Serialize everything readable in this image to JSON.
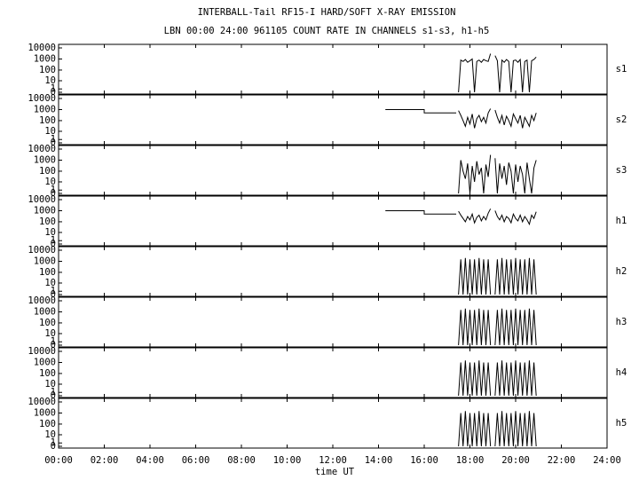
{
  "chart_data": [
    {
      "type": "line",
      "title": "INTERBALL-Tail RF15-I HARD/SOFT X-RAY EMISSION",
      "subtitle": "LBN 00:00 24:00 961105  COUNT RATE IN CHANNELS s1-s3, h1-h5",
      "yscale": "log1p",
      "xlim": [
        0,
        24
      ],
      "ylim": [
        0,
        10000
      ],
      "yticks": [
        10000,
        1000,
        100,
        10,
        1,
        0
      ],
      "x": [
        17.5,
        17.6,
        17.7,
        17.8,
        17.9,
        18.0,
        18.1,
        18.2,
        18.3,
        18.4,
        18.5,
        18.6,
        18.7,
        18.8,
        18.9,
        19.0,
        19.1,
        19.2,
        19.3,
        19.4,
        19.5,
        19.6,
        19.7,
        19.8,
        19.9,
        20.0,
        20.1,
        20.2,
        20.3,
        20.4,
        20.5,
        20.6,
        20.7,
        20.8,
        20.9
      ],
      "series": [
        {
          "name": "s1",
          "color": "#000000",
          "values": [
            0,
            800,
            600,
            900,
            500,
            700,
            1000,
            0,
            600,
            800,
            500,
            900,
            700,
            600,
            3000,
            null,
            2000,
            700,
            0,
            800,
            500,
            900,
            600,
            0,
            700,
            800,
            500,
            900,
            0,
            600,
            800,
            0,
            700,
            900,
            1500
          ]
        }
      ]
    },
    {
      "type": "line",
      "yscale": "log1p",
      "xlim": [
        0,
        24
      ],
      "ylim": [
        0,
        10000
      ],
      "yticks": [
        10000,
        1000,
        100,
        10,
        1,
        0
      ],
      "x": [
        14.3,
        16.0,
        16.0,
        17.4,
        17.45,
        17.5,
        17.6,
        17.7,
        17.8,
        17.9,
        18.0,
        18.1,
        18.2,
        18.3,
        18.4,
        18.5,
        18.6,
        18.7,
        18.8,
        18.9,
        19.0,
        19.1,
        19.2,
        19.3,
        19.4,
        19.5,
        19.6,
        19.7,
        19.8,
        19.9,
        20.0,
        20.1,
        20.2,
        20.3,
        20.4,
        20.5,
        20.6,
        20.7,
        20.8,
        20.9
      ],
      "series": [
        {
          "name": "s2",
          "color": "#000000",
          "values": [
            1000,
            1000,
            500,
            500,
            null,
            800,
            300,
            100,
            30,
            200,
            50,
            400,
            20,
            150,
            300,
            80,
            200,
            60,
            500,
            1200,
            null,
            900,
            200,
            60,
            300,
            40,
            250,
            100,
            30,
            400,
            150,
            60,
            300,
            20,
            200,
            80,
            30,
            300,
            100,
            500
          ]
        }
      ]
    },
    {
      "type": "line",
      "yscale": "log1p",
      "xlim": [
        0,
        24
      ],
      "ylim": [
        0,
        10000
      ],
      "yticks": [
        10000,
        1000,
        100,
        10,
        1,
        0
      ],
      "x": [
        17.5,
        17.6,
        17.7,
        17.8,
        17.9,
        18.0,
        18.1,
        18.2,
        18.3,
        18.4,
        18.5,
        18.6,
        18.7,
        18.8,
        18.9,
        19.0,
        19.1,
        19.2,
        19.3,
        19.4,
        19.5,
        19.6,
        19.7,
        19.8,
        19.9,
        20.0,
        20.1,
        20.2,
        20.3,
        20.4,
        20.5,
        20.6,
        20.7,
        20.8,
        20.9
      ],
      "series": [
        {
          "name": "s3",
          "color": "#000000",
          "values": [
            0,
            1000,
            100,
            20,
            500,
            0,
            300,
            10,
            800,
            50,
            200,
            0,
            400,
            30,
            3000,
            null,
            1500,
            0,
            500,
            20,
            300,
            5,
            600,
            100,
            0,
            400,
            10,
            300,
            50,
            0,
            600,
            20,
            0,
            200,
            1000
          ]
        }
      ]
    },
    {
      "type": "line",
      "yscale": "log1p",
      "xlim": [
        0,
        24
      ],
      "ylim": [
        0,
        10000
      ],
      "yticks": [
        10000,
        1000,
        100,
        10,
        1,
        0
      ],
      "x": [
        14.3,
        16.0,
        16.0,
        17.4,
        17.45,
        17.5,
        17.6,
        17.7,
        17.8,
        17.9,
        18.0,
        18.1,
        18.2,
        18.3,
        18.4,
        18.5,
        18.6,
        18.7,
        18.8,
        18.9,
        19.0,
        19.1,
        19.2,
        19.3,
        19.4,
        19.5,
        19.6,
        19.7,
        19.8,
        19.9,
        20.0,
        20.1,
        20.2,
        20.3,
        20.4,
        20.5,
        20.6,
        20.7,
        20.8,
        20.9
      ],
      "series": [
        {
          "name": "h1",
          "color": "#000000",
          "values": [
            1000,
            1000,
            500,
            500,
            null,
            900,
            400,
            200,
            100,
            300,
            150,
            500,
            80,
            250,
            400,
            120,
            300,
            150,
            600,
            1500,
            null,
            1000,
            300,
            150,
            400,
            100,
            300,
            200,
            80,
            500,
            200,
            120,
            400,
            100,
            300,
            150,
            60,
            400,
            200,
            800
          ]
        }
      ]
    },
    {
      "type": "line",
      "yscale": "log1p",
      "xlim": [
        0,
        24
      ],
      "ylim": [
        0,
        10000
      ],
      "yticks": [
        10000,
        1000,
        100,
        10,
        1,
        0
      ],
      "x": [
        17.5,
        17.6,
        17.7,
        17.8,
        17.9,
        18.0,
        18.1,
        18.2,
        18.3,
        18.4,
        18.5,
        18.6,
        18.7,
        18.8,
        18.9,
        19.0,
        19.1,
        19.2,
        19.3,
        19.4,
        19.5,
        19.6,
        19.7,
        19.8,
        19.9,
        20.0,
        20.1,
        20.2,
        20.3,
        20.4,
        20.5,
        20.6,
        20.7,
        20.8,
        20.9
      ],
      "series": [
        {
          "name": "h2",
          "color": "#000000",
          "values": [
            0,
            1500,
            0,
            2000,
            0,
            1500,
            0,
            1500,
            0,
            2000,
            0,
            1500,
            0,
            1500,
            0,
            null,
            0,
            1500,
            0,
            2000,
            0,
            1500,
            0,
            1500,
            0,
            2000,
            0,
            1500,
            0,
            1500,
            0,
            2000,
            0,
            1500,
            0
          ]
        }
      ]
    },
    {
      "type": "line",
      "yscale": "log1p",
      "xlim": [
        0,
        24
      ],
      "ylim": [
        0,
        10000
      ],
      "yticks": [
        10000,
        1000,
        100,
        10,
        1,
        0
      ],
      "x": [
        17.5,
        17.6,
        17.7,
        17.8,
        17.9,
        18.0,
        18.1,
        18.2,
        18.3,
        18.4,
        18.5,
        18.6,
        18.7,
        18.8,
        18.9,
        19.0,
        19.1,
        19.2,
        19.3,
        19.4,
        19.5,
        19.6,
        19.7,
        19.8,
        19.9,
        20.0,
        20.1,
        20.2,
        20.3,
        20.4,
        20.5,
        20.6,
        20.7,
        20.8,
        20.9
      ],
      "series": [
        {
          "name": "h3",
          "color": "#000000",
          "values": [
            0,
            1500,
            0,
            2000,
            0,
            1500,
            0,
            1500,
            0,
            2000,
            0,
            1500,
            0,
            1500,
            0,
            null,
            0,
            1500,
            0,
            2000,
            0,
            1500,
            0,
            1500,
            0,
            2000,
            0,
            1500,
            0,
            1500,
            0,
            2000,
            0,
            1500,
            0
          ]
        }
      ]
    },
    {
      "type": "line",
      "yscale": "log1p",
      "xlim": [
        0,
        24
      ],
      "ylim": [
        0,
        10000
      ],
      "yticks": [
        10000,
        1000,
        100,
        10,
        1,
        0
      ],
      "x": [
        17.5,
        17.6,
        17.7,
        17.8,
        17.9,
        18.0,
        18.1,
        18.2,
        18.3,
        18.4,
        18.5,
        18.6,
        18.7,
        18.8,
        18.9,
        19.0,
        19.1,
        19.2,
        19.3,
        19.4,
        19.5,
        19.6,
        19.7,
        19.8,
        19.9,
        20.0,
        20.1,
        20.2,
        20.3,
        20.4,
        20.5,
        20.6,
        20.7,
        20.8,
        20.9
      ],
      "series": [
        {
          "name": "h4",
          "color": "#000000",
          "values": [
            0,
            1000,
            0,
            1500,
            0,
            1000,
            0,
            1000,
            0,
            1500,
            0,
            1000,
            0,
            1000,
            0,
            null,
            0,
            1000,
            0,
            1500,
            0,
            1000,
            0,
            1000,
            0,
            1500,
            0,
            1000,
            0,
            1000,
            0,
            1500,
            0,
            1000,
            0
          ]
        }
      ]
    },
    {
      "type": "line",
      "yscale": "log1p",
      "xlim": [
        0,
        24
      ],
      "ylim": [
        0,
        10000
      ],
      "yticks": [
        10000,
        1000,
        100,
        10,
        1,
        0
      ],
      "x_label": "time UT",
      "xticks": [
        {
          "value": 0,
          "label": "00:00"
        },
        {
          "value": 2,
          "label": "02:00"
        },
        {
          "value": 4,
          "label": "04:00"
        },
        {
          "value": 6,
          "label": "06:00"
        },
        {
          "value": 8,
          "label": "08:00"
        },
        {
          "value": 10,
          "label": "10:00"
        },
        {
          "value": 12,
          "label": "12:00"
        },
        {
          "value": 14,
          "label": "14:00"
        },
        {
          "value": 16,
          "label": "16:00"
        },
        {
          "value": 18,
          "label": "18:00"
        },
        {
          "value": 20,
          "label": "20:00"
        },
        {
          "value": 22,
          "label": "22:00"
        },
        {
          "value": 24,
          "label": "24:00"
        }
      ],
      "x": [
        17.5,
        17.6,
        17.7,
        17.8,
        17.9,
        18.0,
        18.1,
        18.2,
        18.3,
        18.4,
        18.5,
        18.6,
        18.7,
        18.8,
        18.9,
        19.0,
        19.1,
        19.2,
        19.3,
        19.4,
        19.5,
        19.6,
        19.7,
        19.8,
        19.9,
        20.0,
        20.1,
        20.2,
        20.3,
        20.4,
        20.5,
        20.6,
        20.7,
        20.8,
        20.9
      ],
      "series": [
        {
          "name": "h5",
          "color": "#000000",
          "values": [
            0,
            1000,
            0,
            1500,
            0,
            1000,
            0,
            1000,
            0,
            1500,
            0,
            1000,
            0,
            1000,
            0,
            null,
            0,
            1000,
            0,
            1500,
            0,
            1000,
            0,
            1000,
            0,
            1500,
            0,
            1000,
            0,
            1000,
            0,
            1500,
            0,
            1000,
            0
          ]
        }
      ]
    }
  ]
}
